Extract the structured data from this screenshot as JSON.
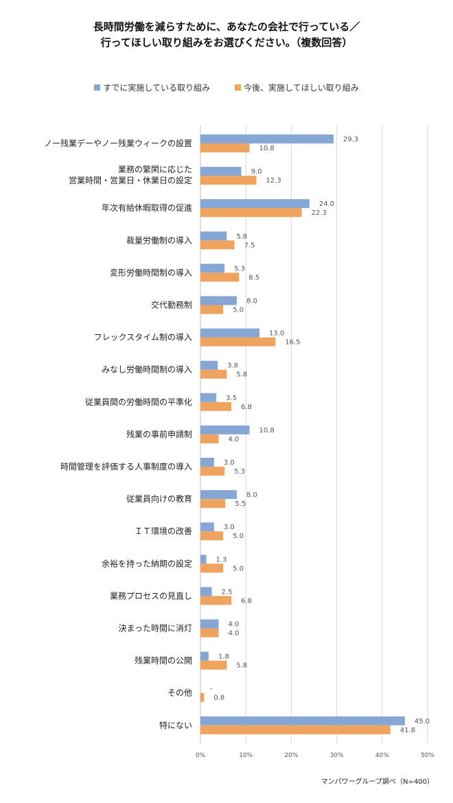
{
  "chart_data": {
    "type": "bar",
    "orientation": "horizontal",
    "title_lines": [
      "長時間労働を減らすために、あなたの会社で行っている／",
      "行ってほしい取り組みをお選びください。（複数回答）"
    ],
    "categories": [
      [
        "ノー残業デーやノー残業ウィークの設置"
      ],
      [
        "業務の繁閑に応じた",
        "営業時間・営業日・休業日の設定"
      ],
      [
        "年次有給休暇取得の促進"
      ],
      [
        "裁量労働制の導入"
      ],
      [
        "変形労働時間制の導入"
      ],
      [
        "交代勤務制"
      ],
      [
        "フレックスタイム制の導入"
      ],
      [
        "みなし労働時間制の導入"
      ],
      [
        "従業員間の労働時間の平準化"
      ],
      [
        "残業の事前申請制"
      ],
      [
        "時間管理を評価する人事制度の導入"
      ],
      [
        "従業員向けの教育"
      ],
      [
        "ＩＴ環境の改善"
      ],
      [
        "余裕を持った納期の設定"
      ],
      [
        "業務プロセスの見直し"
      ],
      [
        "決まった時間に消灯"
      ],
      [
        "残業時間の公開"
      ],
      [
        "その他"
      ],
      [
        "特にない"
      ]
    ],
    "series": [
      {
        "name": "すでに実施している取り組み",
        "color": "#86a7d6",
        "values": [
          29.3,
          9.0,
          24.0,
          5.8,
          5.3,
          8.0,
          13.0,
          3.8,
          3.5,
          10.8,
          3.0,
          8.0,
          3.0,
          1.3,
          2.5,
          4.0,
          1.8,
          null,
          45.0
        ],
        "labels": [
          "29.3",
          "9.0",
          "24.0",
          "5.8",
          "5.3",
          "8.0",
          "13.0",
          "3.8",
          "3.5",
          "10.8",
          "3.0",
          "8.0",
          "3.0",
          "1.3",
          "2.5",
          "4.0",
          "1.8",
          "-",
          "45.0"
        ]
      },
      {
        "name": "今後、実施してほしい取り組み",
        "color": "#f0a35e",
        "values": [
          10.8,
          12.3,
          22.3,
          7.5,
          8.5,
          5.0,
          16.5,
          5.8,
          6.8,
          4.0,
          5.3,
          5.5,
          5.0,
          5.0,
          6.8,
          4.0,
          5.8,
          0.8,
          41.8
        ],
        "labels": [
          "10.8",
          "12.3",
          "22.3",
          "7.5",
          "8.5",
          "5.0",
          "16.5",
          "5.8",
          "6.8",
          "4.0",
          "5.3",
          "5.5",
          "5.0",
          "5.0",
          "6.8",
          "4.0",
          "5.8",
          "0.8",
          "41.8"
        ]
      }
    ],
    "xlim": [
      0,
      50
    ],
    "xticks": [
      "0%",
      "10%",
      "20%",
      "30%",
      "40%",
      "50%"
    ],
    "grid": true,
    "legend": "top-center"
  },
  "source_note": "マンパワーグループ調べ（N=400）"
}
